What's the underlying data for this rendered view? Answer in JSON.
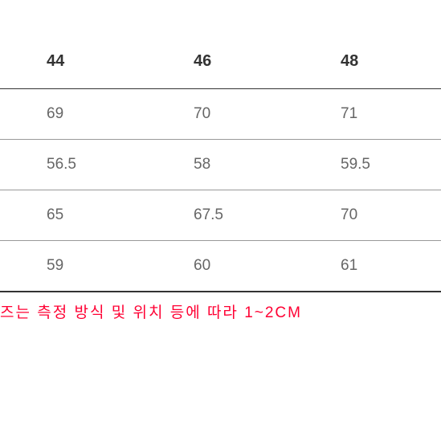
{
  "size_table": {
    "type": "table",
    "columns": [
      "44",
      "46",
      "48"
    ],
    "rows": [
      [
        "69",
        "70",
        "71"
      ],
      [
        "56.5",
        "58",
        "59.5"
      ],
      [
        "65",
        "67.5",
        "70"
      ],
      [
        "59",
        "60",
        "61"
      ]
    ],
    "header_fontsize": 20,
    "header_color": "#333333",
    "header_weight": "bold",
    "cell_fontsize": 19,
    "cell_color": "#666666",
    "border_color_header": "#333333",
    "border_color_row": "#999999",
    "border_color_bottom": "#333333",
    "background_color": "#ffffff"
  },
  "note": {
    "text": "즈는 측정 방식 및 위치 등에 따라 1~2CM",
    "color": "#ff0033",
    "fontsize": 19
  }
}
